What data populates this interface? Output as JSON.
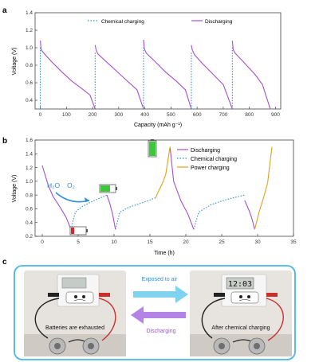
{
  "panel_labels": {
    "a": "a",
    "b": "b",
    "c": "c"
  },
  "colors": {
    "discharge": "#a64fd0",
    "chemical": "#2e8fd6",
    "power": "#e3a11a",
    "accent_box": "#49b5e6",
    "arrow_discharge": "#9b56d6"
  },
  "panel_a": {
    "legend": {
      "chemical": "Chemical charging",
      "discharging": "Discharging"
    },
    "xlabel": "Capacity (mAh g⁻¹)",
    "ylabel": "Voltage (V)"
  },
  "panel_b": {
    "legend": {
      "discharging": "Discharging",
      "chemical": "Chemical charging",
      "power": "Power charging"
    },
    "xlabel": "Time (h)",
    "ylabel": "Voltage (V)",
    "annot_h2o": "H₂O",
    "annot_o2": "O₂"
  },
  "panel_c": {
    "exposed": "Exposed to air",
    "discharging": "Discharging",
    "left_caption": "Batteries are exhausted",
    "right_caption": "After chemical charging",
    "clock_left": "",
    "clock_right": "12:03"
  },
  "chart_data": [
    {
      "type": "line",
      "title": "",
      "xlabel": "Capacity (mAh g⁻¹)",
      "ylabel": "Voltage (V)",
      "xlim": [
        -20,
        920
      ],
      "ylim": [
        0.3,
        1.4
      ],
      "xticks": [
        0,
        100,
        200,
        300,
        400,
        500,
        600,
        700,
        800,
        900
      ],
      "yticks": [
        0.4,
        0.6,
        0.8,
        1.0,
        1.2,
        1.4
      ],
      "series": [
        {
          "name": "Discharging",
          "segments": [
            [
              [
                0,
                1.08
              ],
              [
                3,
                0.98
              ],
              [
                10,
                0.95
              ],
              [
                40,
                0.85
              ],
              [
                80,
                0.73
              ],
              [
                120,
                0.62
              ],
              [
                160,
                0.53
              ],
              [
                190,
                0.46
              ],
              [
                210,
                0.3
              ]
            ],
            [
              [
                210,
                1.03
              ],
              [
                213,
                0.98
              ],
              [
                220,
                0.93
              ],
              [
                260,
                0.82
              ],
              [
                300,
                0.71
              ],
              [
                340,
                0.6
              ],
              [
                370,
                0.52
              ],
              [
                395,
                0.3
              ]
            ],
            [
              [
                395,
                1.09
              ],
              [
                398,
                0.99
              ],
              [
                405,
                0.94
              ],
              [
                440,
                0.84
              ],
              [
                480,
                0.72
              ],
              [
                520,
                0.62
              ],
              [
                555,
                0.52
              ],
              [
                578,
                0.3
              ]
            ],
            [
              [
                578,
                1.03
              ],
              [
                581,
                0.98
              ],
              [
                590,
                0.92
              ],
              [
                620,
                0.82
              ],
              [
                660,
                0.7
              ],
              [
                700,
                0.58
              ],
              [
                735,
                0.3
              ]
            ],
            [
              [
                735,
                1.08
              ],
              [
                738,
                0.98
              ],
              [
                745,
                0.94
              ],
              [
                780,
                0.83
              ],
              [
                820,
                0.7
              ],
              [
                850,
                0.58
              ],
              [
                880,
                0.3
              ]
            ]
          ]
        },
        {
          "name": "Chemical charging",
          "segments": [
            [
              [
                0,
                0.3
              ],
              [
                0,
                1.02
              ]
            ],
            [
              [
                210,
                0.3
              ],
              [
                210,
                0.96
              ]
            ],
            [
              [
                395,
                0.3
              ],
              [
                395,
                1.02
              ]
            ],
            [
              [
                578,
                0.3
              ],
              [
                578,
                0.96
              ]
            ],
            [
              [
                735,
                0.3
              ],
              [
                735,
                1.02
              ]
            ]
          ]
        }
      ]
    },
    {
      "type": "line",
      "title": "",
      "xlabel": "Time (h)",
      "ylabel": "Voltage (V)",
      "xlim": [
        -1,
        35
      ],
      "ylim": [
        0.2,
        1.6
      ],
      "xticks": [
        0,
        5,
        10,
        15,
        20,
        25,
        30,
        35
      ],
      "yticks": [
        0.2,
        0.4,
        0.6,
        0.8,
        1.0,
        1.2,
        1.4,
        1.6
      ],
      "series": [
        {
          "name": "Discharging",
          "segments": [
            [
              [
                0,
                1.23
              ],
              [
                0.8,
                0.95
              ],
              [
                1.5,
                0.78
              ],
              [
                2.5,
                0.62
              ],
              [
                3.3,
                0.48
              ],
              [
                4.0,
                0.3
              ]
            ],
            [
              [
                9.0,
                0.8
              ],
              [
                9.4,
                0.68
              ],
              [
                9.8,
                0.52
              ],
              [
                10.2,
                0.3
              ]
            ],
            [
              [
                17.8,
                1.5
              ],
              [
                18.3,
                1.0
              ],
              [
                19.3,
                0.72
              ],
              [
                20.3,
                0.52
              ],
              [
                21.1,
                0.3
              ]
            ],
            [
              [
                28.2,
                0.72
              ],
              [
                28.8,
                0.58
              ],
              [
                29.2,
                0.46
              ],
              [
                29.6,
                0.3
              ]
            ]
          ]
        },
        {
          "name": "Chemical charging",
          "segments": [
            [
              [
                4.0,
                0.3
              ],
              [
                4.6,
                0.55
              ],
              [
                5.5,
                0.63
              ],
              [
                7.0,
                0.71
              ],
              [
                9.0,
                0.8
              ]
            ],
            [
              [
                10.2,
                0.3
              ],
              [
                10.8,
                0.55
              ],
              [
                12.0,
                0.62
              ],
              [
                14.0,
                0.69
              ],
              [
                15.8,
                0.76
              ]
            ],
            [
              [
                21.1,
                0.3
              ],
              [
                21.8,
                0.55
              ],
              [
                23.5,
                0.66
              ],
              [
                25.5,
                0.73
              ],
              [
                28.2,
                0.8
              ]
            ]
          ]
        },
        {
          "name": "Power charging",
          "segments": [
            [
              [
                15.8,
                0.76
              ],
              [
                16.2,
                0.86
              ],
              [
                16.7,
                0.96
              ],
              [
                17.2,
                1.1
              ],
              [
                17.8,
                1.5
              ]
            ],
            [
              [
                29.6,
                0.3
              ],
              [
                30.2,
                0.55
              ],
              [
                30.8,
                0.75
              ],
              [
                31.4,
                0.98
              ],
              [
                32.0,
                1.5
              ]
            ]
          ]
        }
      ]
    }
  ]
}
